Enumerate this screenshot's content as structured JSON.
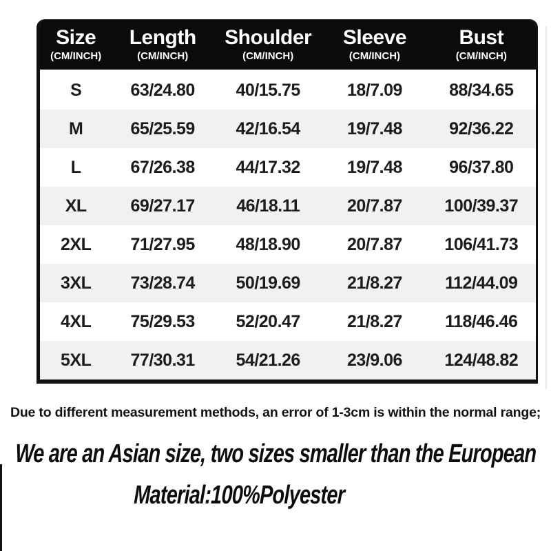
{
  "colors": {
    "header_bg": "#0b0b0b",
    "header_text": "#ffffff",
    "body_text": "#1c1c1c",
    "row_alt_bg": "#f1f1f1",
    "border": "#101010"
  },
  "chart_data": {
    "type": "table",
    "columns": [
      {
        "key": "size",
        "label": "Size",
        "sub": "(CM/INCH)"
      },
      {
        "key": "length",
        "label": "Length",
        "sub": "(CM/INCH)"
      },
      {
        "key": "shoulder",
        "label": "Shoulder",
        "sub": "(CM/INCH)"
      },
      {
        "key": "sleeve",
        "label": "Sleeve",
        "sub": "(CM/INCH)"
      },
      {
        "key": "bust",
        "label": "Bust",
        "sub": "(CM/INCH)"
      }
    ],
    "rows": [
      [
        "S",
        "63/24.80",
        "40/15.75",
        "18/7.09",
        "88/34.65"
      ],
      [
        "M",
        "65/25.59",
        "42/16.54",
        "19/7.48",
        "92/36.22"
      ],
      [
        "L",
        "67/26.38",
        "44/17.32",
        "19/7.48",
        "96/37.80"
      ],
      [
        "XL",
        "69/27.17",
        "46/18.11",
        "20/7.87",
        "100/39.37"
      ],
      [
        "2XL",
        "71/27.95",
        "48/18.90",
        "20/7.87",
        "106/41.73"
      ],
      [
        "3XL",
        "73/28.74",
        "50/19.69",
        "21/8.27",
        "112/44.09"
      ],
      [
        "4XL",
        "75/29.53",
        "52/20.47",
        "21/8.27",
        "118/46.46"
      ],
      [
        "5XL",
        "77/30.31",
        "54/21.26",
        "23/9.06",
        "124/48.82"
      ]
    ],
    "layout": {
      "row_shading": "alternate",
      "header_style": "black-rounded-top"
    }
  },
  "notes": {
    "measurement_note": "Due to different measurement methods, an error of 1-3cm is within the normal range;",
    "asian_size_note": "We are an Asian size, two sizes smaller than the European",
    "material_note": "Material:100%Polyester"
  }
}
